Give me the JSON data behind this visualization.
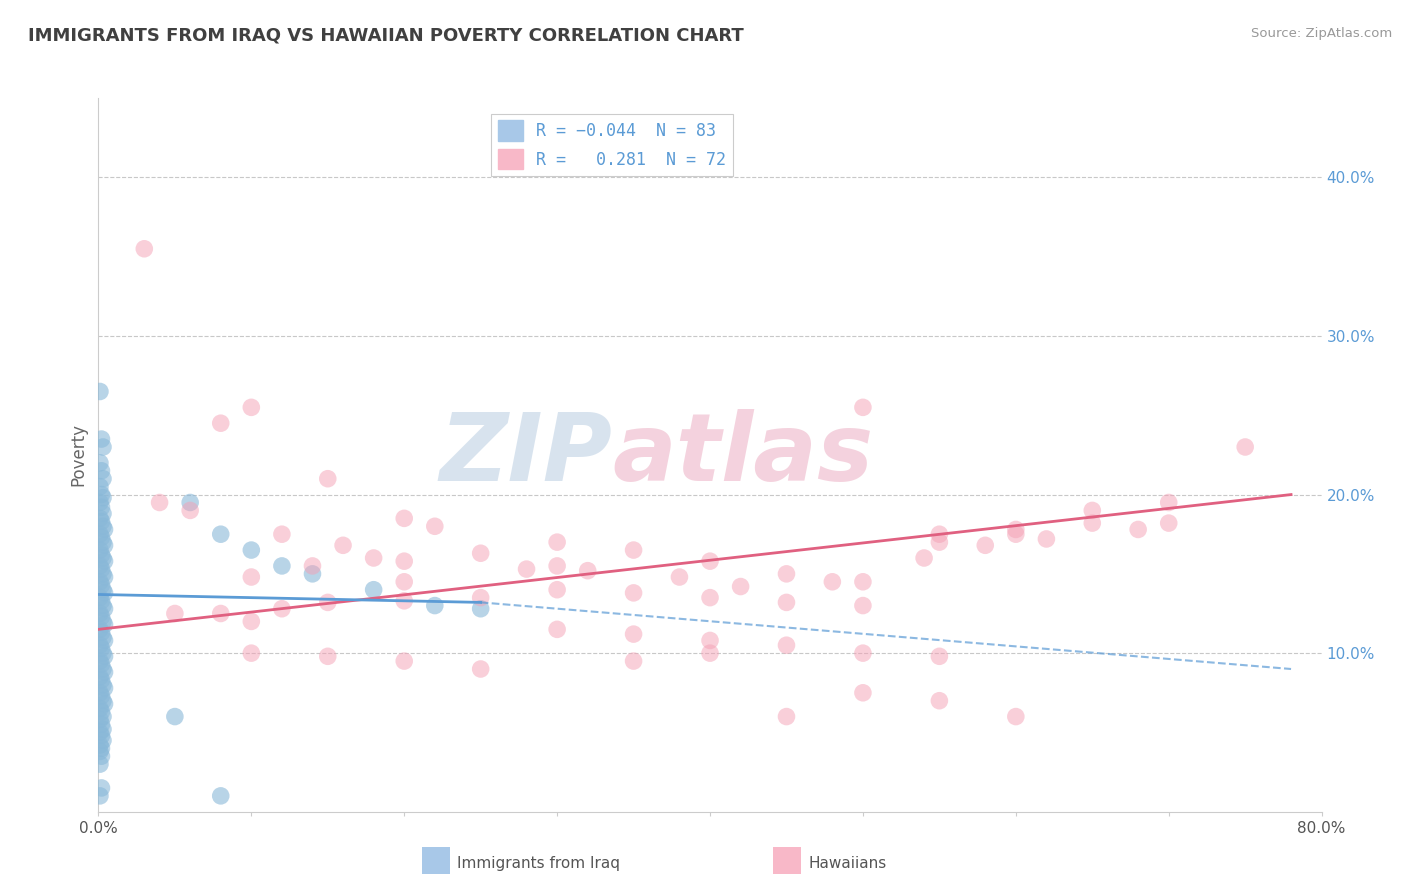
{
  "title": "IMMIGRANTS FROM IRAQ VS HAWAIIAN POVERTY CORRELATION CHART",
  "source": "Source: ZipAtlas.com",
  "ylabel": "Poverty",
  "xlim": [
    0,
    0.8
  ],
  "ylim": [
    0,
    0.45
  ],
  "yticks": [
    0.1,
    0.2,
    0.3,
    0.4
  ],
  "ytick_labels": [
    "10.0%",
    "20.0%",
    "30.0%",
    "40.0%"
  ],
  "blue_color": "#89b8d8",
  "pink_color": "#f4a0b5",
  "blue_line_color": "#5b9bd5",
  "pink_line_color": "#e06080",
  "watermark_color": "#c8d8e8",
  "watermark_pink": "#f0c0d0",
  "background_color": "#ffffff",
  "grid_color": "#c8c8c8",
  "title_color": "#404040",
  "axis_label_color": "#5b9bd5",
  "blue_scatter": [
    [
      0.001,
      0.265
    ],
    [
      0.002,
      0.235
    ],
    [
      0.003,
      0.23
    ],
    [
      0.001,
      0.22
    ],
    [
      0.002,
      0.215
    ],
    [
      0.003,
      0.21
    ],
    [
      0.001,
      0.205
    ],
    [
      0.002,
      0.2
    ],
    [
      0.003,
      0.198
    ],
    [
      0.001,
      0.195
    ],
    [
      0.002,
      0.192
    ],
    [
      0.003,
      0.188
    ],
    [
      0.001,
      0.185
    ],
    [
      0.002,
      0.183
    ],
    [
      0.003,
      0.18
    ],
    [
      0.004,
      0.178
    ],
    [
      0.001,
      0.175
    ],
    [
      0.002,
      0.173
    ],
    [
      0.003,
      0.17
    ],
    [
      0.004,
      0.168
    ],
    [
      0.001,
      0.165
    ],
    [
      0.002,
      0.162
    ],
    [
      0.003,
      0.16
    ],
    [
      0.004,
      0.158
    ],
    [
      0.001,
      0.155
    ],
    [
      0.002,
      0.153
    ],
    [
      0.003,
      0.15
    ],
    [
      0.004,
      0.148
    ],
    [
      0.001,
      0.145
    ],
    [
      0.002,
      0.143
    ],
    [
      0.003,
      0.14
    ],
    [
      0.004,
      0.138
    ],
    [
      0.001,
      0.135
    ],
    [
      0.002,
      0.133
    ],
    [
      0.003,
      0.13
    ],
    [
      0.004,
      0.128
    ],
    [
      0.001,
      0.125
    ],
    [
      0.002,
      0.123
    ],
    [
      0.003,
      0.12
    ],
    [
      0.004,
      0.118
    ],
    [
      0.001,
      0.115
    ],
    [
      0.002,
      0.113
    ],
    [
      0.003,
      0.11
    ],
    [
      0.004,
      0.108
    ],
    [
      0.001,
      0.105
    ],
    [
      0.002,
      0.103
    ],
    [
      0.003,
      0.1
    ],
    [
      0.004,
      0.098
    ],
    [
      0.001,
      0.095
    ],
    [
      0.002,
      0.093
    ],
    [
      0.003,
      0.09
    ],
    [
      0.004,
      0.088
    ],
    [
      0.001,
      0.085
    ],
    [
      0.002,
      0.083
    ],
    [
      0.003,
      0.08
    ],
    [
      0.004,
      0.078
    ],
    [
      0.001,
      0.075
    ],
    [
      0.002,
      0.073
    ],
    [
      0.003,
      0.07
    ],
    [
      0.004,
      0.068
    ],
    [
      0.001,
      0.065
    ],
    [
      0.002,
      0.063
    ],
    [
      0.003,
      0.06
    ],
    [
      0.001,
      0.058
    ],
    [
      0.002,
      0.055
    ],
    [
      0.003,
      0.052
    ],
    [
      0.001,
      0.05
    ],
    [
      0.002,
      0.048
    ],
    [
      0.003,
      0.045
    ],
    [
      0.001,
      0.042
    ],
    [
      0.002,
      0.04
    ],
    [
      0.001,
      0.038
    ],
    [
      0.002,
      0.035
    ],
    [
      0.001,
      0.03
    ],
    [
      0.06,
      0.195
    ],
    [
      0.08,
      0.175
    ],
    [
      0.1,
      0.165
    ],
    [
      0.12,
      0.155
    ],
    [
      0.14,
      0.15
    ],
    [
      0.18,
      0.14
    ],
    [
      0.22,
      0.13
    ],
    [
      0.25,
      0.128
    ],
    [
      0.05,
      0.06
    ],
    [
      0.001,
      0.01
    ],
    [
      0.002,
      0.015
    ],
    [
      0.08,
      0.01
    ]
  ],
  "pink_scatter": [
    [
      0.03,
      0.355
    ],
    [
      0.1,
      0.255
    ],
    [
      0.08,
      0.245
    ],
    [
      0.15,
      0.21
    ],
    [
      0.5,
      0.255
    ],
    [
      0.04,
      0.195
    ],
    [
      0.06,
      0.19
    ],
    [
      0.2,
      0.185
    ],
    [
      0.22,
      0.18
    ],
    [
      0.12,
      0.175
    ],
    [
      0.3,
      0.17
    ],
    [
      0.16,
      0.168
    ],
    [
      0.35,
      0.165
    ],
    [
      0.25,
      0.163
    ],
    [
      0.18,
      0.16
    ],
    [
      0.4,
      0.158
    ],
    [
      0.14,
      0.155
    ],
    [
      0.28,
      0.153
    ],
    [
      0.32,
      0.152
    ],
    [
      0.45,
      0.15
    ],
    [
      0.1,
      0.148
    ],
    [
      0.38,
      0.148
    ],
    [
      0.2,
      0.145
    ],
    [
      0.5,
      0.145
    ],
    [
      0.55,
      0.175
    ],
    [
      0.6,
      0.178
    ],
    [
      0.65,
      0.182
    ],
    [
      0.42,
      0.142
    ],
    [
      0.48,
      0.145
    ],
    [
      0.54,
      0.16
    ],
    [
      0.58,
      0.168
    ],
    [
      0.62,
      0.172
    ],
    [
      0.68,
      0.178
    ],
    [
      0.7,
      0.182
    ],
    [
      0.75,
      0.23
    ],
    [
      0.3,
      0.14
    ],
    [
      0.35,
      0.138
    ],
    [
      0.25,
      0.135
    ],
    [
      0.2,
      0.133
    ],
    [
      0.15,
      0.132
    ],
    [
      0.4,
      0.135
    ],
    [
      0.45,
      0.132
    ],
    [
      0.5,
      0.13
    ],
    [
      0.12,
      0.128
    ],
    [
      0.08,
      0.125
    ],
    [
      0.05,
      0.125
    ],
    [
      0.1,
      0.12
    ],
    [
      0.6,
      0.175
    ],
    [
      0.55,
      0.17
    ],
    [
      0.65,
      0.19
    ],
    [
      0.7,
      0.195
    ],
    [
      0.3,
      0.115
    ],
    [
      0.35,
      0.112
    ],
    [
      0.4,
      0.108
    ],
    [
      0.45,
      0.105
    ],
    [
      0.5,
      0.1
    ],
    [
      0.55,
      0.098
    ],
    [
      0.45,
      0.06
    ],
    [
      0.5,
      0.075
    ],
    [
      0.4,
      0.1
    ],
    [
      0.35,
      0.095
    ],
    [
      0.25,
      0.09
    ],
    [
      0.2,
      0.095
    ],
    [
      0.15,
      0.098
    ],
    [
      0.1,
      0.1
    ],
    [
      0.6,
      0.06
    ],
    [
      0.55,
      0.07
    ],
    [
      0.3,
      0.155
    ],
    [
      0.2,
      0.158
    ]
  ],
  "blue_line_solid": {
    "x": [
      0.0,
      0.25
    ],
    "y": [
      0.137,
      0.132
    ]
  },
  "blue_line_dashed": {
    "x": [
      0.25,
      0.78
    ],
    "y": [
      0.132,
      0.09
    ]
  },
  "pink_line": {
    "x": [
      0.0,
      0.78
    ],
    "y": [
      0.115,
      0.2
    ]
  }
}
